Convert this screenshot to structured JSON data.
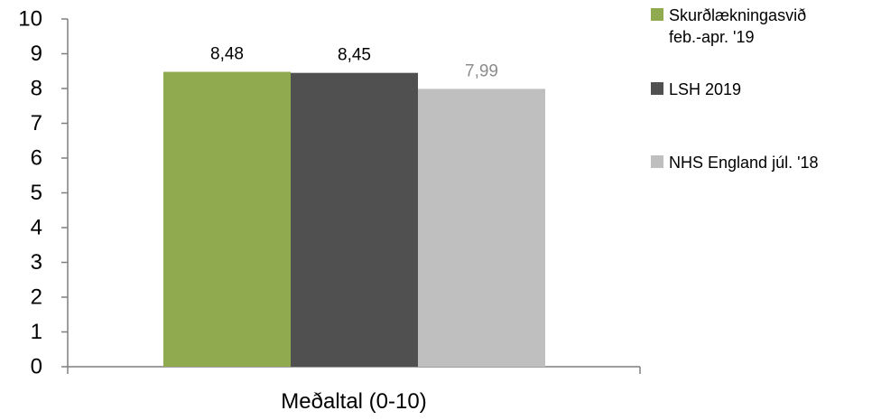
{
  "chart_data": {
    "type": "bar",
    "categories": [
      "Meðaltal (0-10)"
    ],
    "series": [
      {
        "name": "Skurðlækningasvið feb.-apr. '19",
        "name_lines": [
          "Skurðlækningasvið",
          "feb.-apr. '19"
        ],
        "values": [
          8.48
        ],
        "label": "8,48",
        "color": "#8faa4f",
        "label_color": "#000000"
      },
      {
        "name": "LSH 2019",
        "name_lines": [
          "LSH 2019"
        ],
        "values": [
          8.45
        ],
        "label": "8,45",
        "color": "#505050",
        "label_color": "#000000"
      },
      {
        "name": "NHS England júl. '18",
        "name_lines": [
          "NHS England júl. '18"
        ],
        "values": [
          7.99
        ],
        "label": "7,99",
        "color": "#bfbfbf",
        "label_color": "#8c8c8c"
      }
    ],
    "ylim": [
      0,
      10
    ],
    "yticks": [
      "0",
      "1",
      "2",
      "3",
      "4",
      "5",
      "6",
      "7",
      "8",
      "9",
      "10"
    ],
    "title": "",
    "xlabel": "",
    "ylabel": "",
    "grid": false,
    "legend_position": "right"
  }
}
